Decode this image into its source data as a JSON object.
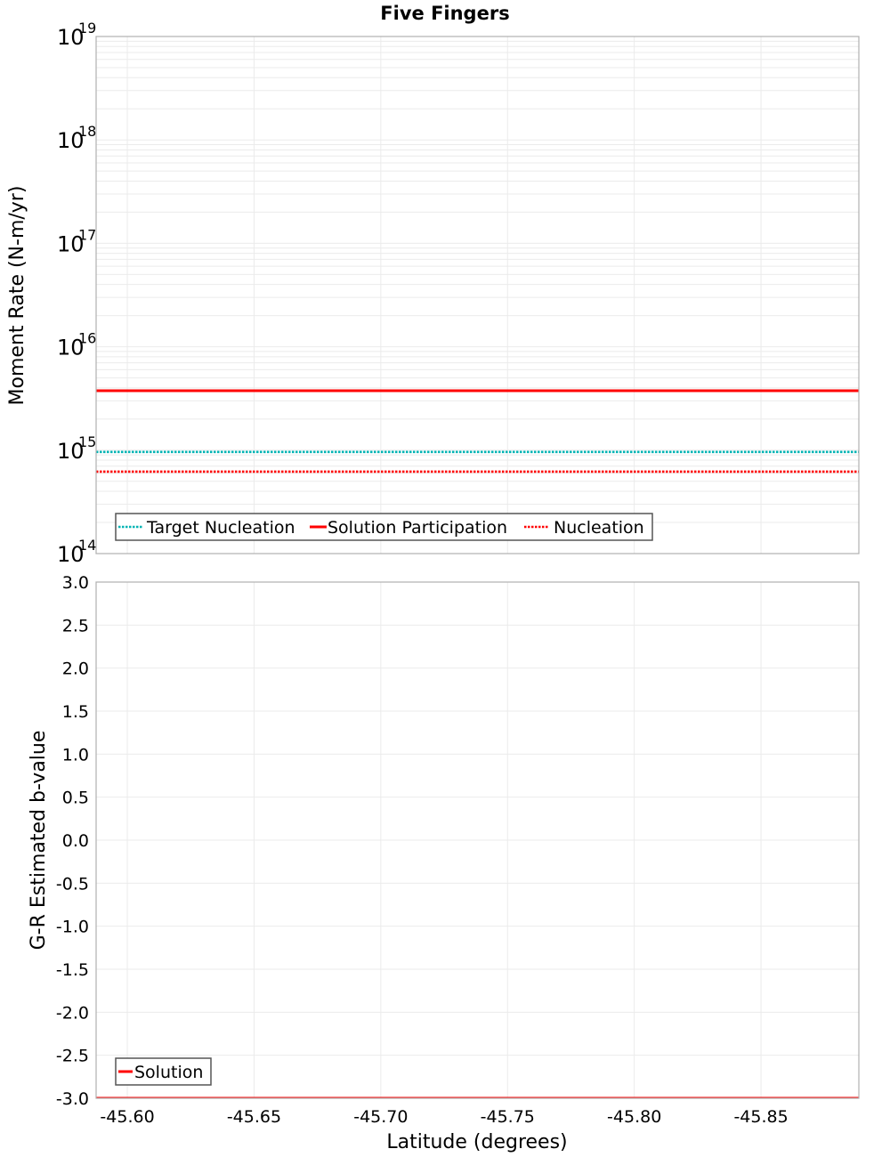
{
  "chart_data": [
    {
      "type": "line",
      "title": "Five Fingers",
      "xlabel": "",
      "ylabel": "Moment Rate (N-m/yr)",
      "yscale": "log",
      "ylim": [
        100000000000000.0,
        1e+19
      ],
      "xlim": [
        -45.5877,
        -45.8886
      ],
      "x_reversed": true,
      "grid": true,
      "legend_position": "lower left",
      "y_tick_labels": [
        {
          "base": "10",
          "exp": "14",
          "value": 100000000000000.0
        },
        {
          "base": "10",
          "exp": "15",
          "value": 1000000000000000.0
        },
        {
          "base": "10",
          "exp": "16",
          "value": 1e+16
        },
        {
          "base": "10",
          "exp": "17",
          "value": 1e+17
        },
        {
          "base": "10",
          "exp": "18",
          "value": 1e+18
        },
        {
          "base": "10",
          "exp": "19",
          "value": 1e+19
        }
      ],
      "series": [
        {
          "name": "Target Nucleation",
          "style": "dotted",
          "color": "#00b4b4",
          "x": [
            -45.5877,
            -45.8886
          ],
          "values": [
            960000000000000.0,
            960000000000000.0
          ]
        },
        {
          "name": "Solution Participation",
          "style": "solid",
          "color": "#ff0000",
          "x": [
            -45.5877,
            -45.8886
          ],
          "values": [
            3760000000000000.0,
            3760000000000000.0
          ]
        },
        {
          "name": "Nucleation",
          "style": "dotted",
          "color": "#ff0000",
          "x": [
            -45.5877,
            -45.8886
          ],
          "values": [
            620000000000000.0,
            620000000000000.0
          ]
        }
      ]
    },
    {
      "type": "line",
      "title": "",
      "xlabel": "Latitude (degrees)",
      "ylabel": "G-R Estimated b-value",
      "ylim": [
        -3.0,
        3.0
      ],
      "xlim": [
        -45.5877,
        -45.8886
      ],
      "x_reversed": true,
      "grid": true,
      "legend_position": "lower left",
      "x_tick_labels": [
        "-45.60",
        "-45.65",
        "-45.70",
        "-45.75",
        "-45.80",
        "-45.85"
      ],
      "x_ticks": [
        -45.6,
        -45.65,
        -45.7,
        -45.75,
        -45.8,
        -45.85
      ],
      "y_tick_labels": [
        "3.0",
        "2.5",
        "2.0",
        "1.5",
        "1.0",
        "0.5",
        "0.0",
        "-0.5",
        "-1.0",
        "-1.5",
        "-2.0",
        "-2.5",
        "-3.0"
      ],
      "y_ticks": [
        3.0,
        2.5,
        2.0,
        1.5,
        1.0,
        0.5,
        0.0,
        -0.5,
        -1.0,
        -1.5,
        -2.0,
        -2.5,
        -3.0
      ],
      "series": [
        {
          "name": "Solution",
          "style": "solid",
          "color": "#ff0000",
          "x": [
            -45.5877,
            -45.8886
          ],
          "values": [
            -3.0,
            -3.0
          ]
        }
      ]
    }
  ],
  "labels": {
    "title": "Five Fingers",
    "top_ylabel": "Moment Rate (N-m/yr)",
    "bottom_ylabel": "G-R Estimated b-value",
    "xlabel": "Latitude (degrees)"
  },
  "colors": {
    "cyan": "#00b4b4",
    "red": "#ff0000",
    "grid": "#ebebeb",
    "frame": "#b0b0b0"
  }
}
